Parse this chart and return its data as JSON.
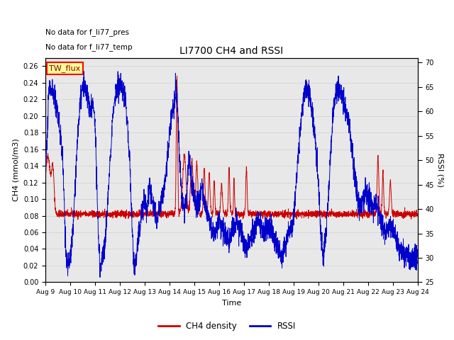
{
  "title": "LI7700 CH4 and RSSI",
  "xlabel": "Time",
  "ylabel_left": "CH4 (mmol/m3)",
  "ylabel_right": "RSSI (%)",
  "annotation1": "No data for f_li77_pres",
  "annotation2": "No data for f_li77_temp",
  "legend_box_label": "TW_flux",
  "ylim_left": [
    0.0,
    0.27
  ],
  "ylim_right": [
    25,
    71
  ],
  "yticks_left": [
    0.0,
    0.02,
    0.04,
    0.06,
    0.08,
    0.1,
    0.12,
    0.14,
    0.16,
    0.18,
    0.2,
    0.22,
    0.24,
    0.26
  ],
  "yticks_right": [
    25,
    30,
    35,
    40,
    45,
    50,
    55,
    60,
    65,
    70
  ],
  "xtick_labels": [
    "Aug 9",
    "Aug 10",
    "Aug 11",
    "Aug 12",
    "Aug 13",
    "Aug 14",
    "Aug 15",
    "Aug 16",
    "Aug 17",
    "Aug 18",
    "Aug 19",
    "Aug 20",
    "Aug 21",
    "Aug 22",
    "Aug 23",
    "Aug 24"
  ],
  "ch4_color": "#cc0000",
  "rssi_color": "#0000cc",
  "grid_color": "#d0d0d0",
  "bg_color": "#ffffff",
  "plot_bg": "#e8e8e8",
  "legend_ch4": "CH4 density",
  "legend_rssi": "RSSI"
}
